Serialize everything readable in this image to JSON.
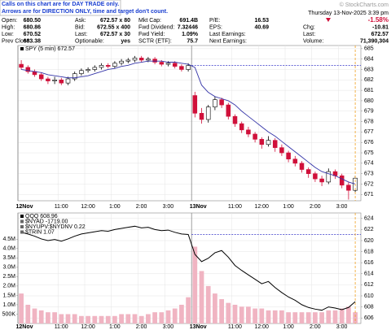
{
  "banner": [
    "Calls on this chart are for DAY TRADE only.",
    "Arrows are for DIRECTION ONLY, time and target don't count."
  ],
  "watermark": "© StockCharts.com",
  "quote": {
    "columns": [
      [
        [
          "Open:",
          "680.50"
        ],
        [
          "High:",
          "680.86"
        ],
        [
          "Low:",
          "670.52"
        ],
        [
          "Prev Close:",
          "683.38"
        ]
      ],
      [
        [
          "Ask:",
          "672.57 x 80"
        ],
        [
          "Bid:",
          "672.55 x 400"
        ],
        [
          "Last:",
          "672.57 x 30"
        ],
        [
          "Optionable:",
          "yes"
        ]
      ],
      [
        [
          "Mkt Cap:",
          "691.4B"
        ],
        [
          "Fwd Dividend:",
          "7.32446"
        ],
        [
          "Fwd Yield:",
          "1.09%"
        ],
        [
          "SCTR (ETF):",
          "75.7"
        ]
      ],
      [
        [
          "P/E:",
          "16.53"
        ],
        [
          "EPS:",
          "40.69"
        ],
        [
          "Last Earnings:"
        ],
        [
          "Next Earnings:"
        ]
      ]
    ]
  },
  "status": {
    "date": "Thursday 13-Nov-2025 3:39 pm",
    "change_pct": "-1.58%",
    "rows": [
      [
        "Chg:",
        "-10.81"
      ],
      [
        "Last:",
        "672.57"
      ],
      [
        "Volume:",
        "71,390,304"
      ]
    ]
  },
  "chart_data": [
    {
      "type": "candlestick",
      "categories": [
        "12Nov",
        null,
        null,
        null,
        null,
        null,
        "11:00",
        null,
        null,
        null,
        "12:00",
        null,
        null,
        null,
        "1:00",
        null,
        null,
        null,
        "2:00",
        null,
        null,
        null,
        "3:00",
        null,
        null,
        null,
        "13Nov",
        null,
        null,
        null,
        null,
        null,
        "11:00",
        null,
        null,
        null,
        "12:00",
        null,
        null,
        null,
        "1:00",
        null,
        null,
        null,
        "2:00",
        null,
        null,
        null,
        "3:00",
        null,
        null
      ],
      "series": [
        {
          "name": "SPY (5 min) 672.57",
          "up_color": "#000000",
          "down_color": "#d0103a",
          "open": [
            683.5,
            683.2,
            682.8,
            682.5,
            682.1,
            681.9,
            682.0,
            681.7,
            682.1,
            682.6,
            682.9,
            683.0,
            683.2,
            683.4,
            683.3,
            683.6,
            683.8,
            683.9,
            684.1,
            683.9,
            684.0,
            683.7,
            683.5,
            683.6,
            683.3,
            683.0,
            680.5,
            678.8,
            678.2,
            679.4,
            680.1,
            679.6,
            678.5,
            677.8,
            677.2,
            676.8,
            676.3,
            675.8,
            676.2,
            675.5,
            675.0,
            674.4,
            674.0,
            673.4,
            673.0,
            672.5,
            672.2,
            673.2,
            672.8,
            671.9,
            671.4
          ],
          "high": [
            683.9,
            683.4,
            683.0,
            682.7,
            682.3,
            682.3,
            682.2,
            682.3,
            682.8,
            683.1,
            683.2,
            683.4,
            683.6,
            683.6,
            683.8,
            684.0,
            684.1,
            684.3,
            684.3,
            684.2,
            684.2,
            683.9,
            683.8,
            683.8,
            683.5,
            683.6,
            680.86,
            679.3,
            679.6,
            680.4,
            680.3,
            679.8,
            678.7,
            678.0,
            677.5,
            677.0,
            676.5,
            676.6,
            676.4,
            675.8,
            675.2,
            674.7,
            674.2,
            673.6,
            673.2,
            672.8,
            673.5,
            673.4,
            673.0,
            672.2,
            672.8
          ],
          "low": [
            683.0,
            682.6,
            682.3,
            681.9,
            681.6,
            681.6,
            681.5,
            681.5,
            681.9,
            682.4,
            682.7,
            682.8,
            683.0,
            683.1,
            683.1,
            683.4,
            683.6,
            683.7,
            683.7,
            683.7,
            683.5,
            683.3,
            683.3,
            683.1,
            682.8,
            682.8,
            678.4,
            677.8,
            677.9,
            679.1,
            679.3,
            678.2,
            677.5,
            676.9,
            676.5,
            676.0,
            675.4,
            675.6,
            675.1,
            674.7,
            674.1,
            673.7,
            673.1,
            672.6,
            672.2,
            671.8,
            672.0,
            672.5,
            671.6,
            670.52,
            671.2
          ],
          "close": [
            683.2,
            682.8,
            682.5,
            682.1,
            681.9,
            682.0,
            681.7,
            682.1,
            682.6,
            682.9,
            683.0,
            683.2,
            683.4,
            683.3,
            683.6,
            683.8,
            683.9,
            684.1,
            683.9,
            684.0,
            683.7,
            683.5,
            683.6,
            683.3,
            683.0,
            683.38,
            678.8,
            678.2,
            679.4,
            680.1,
            679.6,
            678.5,
            677.8,
            677.2,
            676.8,
            676.3,
            675.8,
            676.2,
            675.5,
            675.0,
            674.4,
            674.0,
            673.4,
            673.0,
            672.5,
            672.2,
            673.2,
            672.8,
            671.9,
            671.4,
            672.57
          ]
        },
        {
          "color": "#3535a8",
          "values": [
            683.0,
            682.9,
            682.8,
            682.7,
            682.5,
            682.4,
            682.3,
            682.2,
            682.2,
            682.3,
            682.4,
            682.6,
            682.8,
            683.0,
            683.1,
            683.3,
            683.4,
            683.6,
            683.7,
            683.8,
            683.8,
            683.8,
            683.7,
            683.7,
            683.6,
            683.5,
            683.2,
            681.5,
            680.8,
            680.4,
            680.2,
            680.0,
            679.6,
            679.0,
            678.5,
            678.0,
            677.5,
            677.0,
            676.6,
            676.1,
            675.6,
            675.1,
            674.6,
            674.1,
            673.6,
            673.2,
            673.0,
            672.8,
            672.5,
            672.2,
            672.0
          ]
        }
      ],
      "reference_line": 683.38,
      "reference_color": "#3535c8",
      "now_color": "#f0a020",
      "ylim": [
        670.4,
        685.3
      ],
      "yticks": [
        671,
        672,
        673,
        674,
        675,
        676,
        677,
        678,
        679,
        680,
        681,
        682,
        683,
        684,
        685
      ],
      "grid": true
    },
    {
      "type": "line",
      "categories": [
        "12Nov",
        null,
        null,
        null,
        null,
        null,
        "11:00",
        null,
        null,
        null,
        "12:00",
        null,
        null,
        null,
        "1:00",
        null,
        null,
        null,
        "2:00",
        null,
        null,
        null,
        "3:00",
        null,
        null,
        null,
        "13Nov",
        null,
        null,
        null,
        null,
        null,
        "11:00",
        null,
        null,
        null,
        "12:00",
        null,
        null,
        null,
        "1:00",
        null,
        null,
        null,
        "2:00",
        null,
        null,
        null,
        "3:00",
        null,
        null
      ],
      "series": [
        {
          "name": "QQQ 608.96",
          "color": "#000000",
          "values": [
            621.5,
            621.2,
            620.8,
            620.3,
            620.0,
            620.2,
            619.9,
            620.3,
            620.8,
            621.2,
            621.4,
            621.6,
            621.8,
            621.7,
            622.0,
            622.2,
            622.4,
            622.6,
            622.3,
            622.4,
            622.0,
            621.8,
            621.9,
            621.5,
            621.2,
            621.1,
            617.5,
            616.2,
            616.8,
            617.8,
            618.2,
            617.0,
            615.5,
            614.6,
            613.8,
            613.0,
            612.2,
            612.6,
            611.5,
            610.6,
            609.8,
            609.2,
            608.4,
            607.9,
            607.6,
            607.4,
            608.0,
            607.8,
            607.5,
            607.9,
            608.96
          ]
        }
      ],
      "labels": [
        "$NYAD -1719.00",
        "$NYUPV:$NYDNV 0.22",
        "$TRIN 1.07"
      ],
      "volume": {
        "axis": "y2",
        "color": "#f0b4c2",
        "values": [
          1600000,
          1000000,
          800000,
          700000,
          600000,
          600000,
          500000,
          500000,
          500000,
          400000,
          400000,
          400000,
          400000,
          400000,
          400000,
          500000,
          500000,
          500000,
          400000,
          500000,
          600000,
          600000,
          700000,
          800000,
          1000000,
          1400000,
          4100000,
          2800000,
          2000000,
          1600000,
          1300000,
          1100000,
          1000000,
          900000,
          900000,
          800000,
          800000,
          700000,
          700000,
          700000,
          600000,
          600000,
          600000,
          600000,
          600000,
          600000,
          700000,
          700000,
          800000,
          900000,
          600000
        ]
      },
      "reference_line": 621.1,
      "reference_color": "#3535c8",
      "now_color": "#f0a020",
      "ylim": [
        605,
        625
      ],
      "yticks": [
        606,
        608,
        610,
        612,
        614,
        616,
        618,
        620,
        622,
        624
      ],
      "y2lim": [
        0,
        5900000
      ],
      "y2ticks": [
        {
          "value": 500000,
          "label": "500K"
        },
        {
          "value": 1000000,
          "label": "1.0M"
        },
        {
          "value": 1500000,
          "label": "1.5M"
        },
        {
          "value": 2000000,
          "label": "2.0M"
        },
        {
          "value": 2500000,
          "label": "2.5M"
        },
        {
          "value": 3000000,
          "label": "3.0M"
        },
        {
          "value": 3500000,
          "label": "3.5M"
        },
        {
          "value": 4000000,
          "label": "4.0M"
        },
        {
          "value": 4500000,
          "label": "4.5M"
        }
      ],
      "grid": true
    }
  ]
}
